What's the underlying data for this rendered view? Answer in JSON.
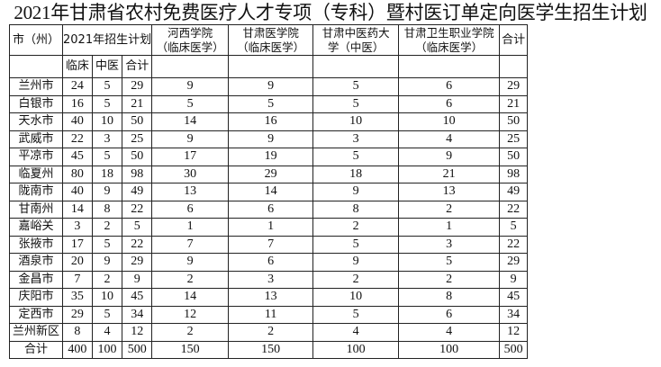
{
  "title": "2021年甘肃省农村免费医疗人才专项（专科）暨村医订单定向医学生招生计划",
  "headers": {
    "region": "市（州）",
    "plan": "2021年招生计划",
    "plan_sub": [
      "临床",
      "中医",
      "合计"
    ],
    "schools": [
      [
        "河西学院",
        "（临床医学）"
      ],
      [
        "甘肃医学院",
        "（临床医学）"
      ],
      [
        "甘肃中医药大",
        "学（中医）"
      ],
      [
        "甘肃卫生职业学院",
        "（临床医学）"
      ]
    ],
    "total": "合计"
  },
  "rows": [
    [
      "兰州市",
      "24",
      "5",
      "29",
      "9",
      "9",
      "5",
      "6",
      "29"
    ],
    [
      "白银市",
      "16",
      "5",
      "21",
      "5",
      "5",
      "5",
      "6",
      "21"
    ],
    [
      "天水市",
      "40",
      "10",
      "50",
      "14",
      "16",
      "10",
      "10",
      "50"
    ],
    [
      "武威市",
      "22",
      "3",
      "25",
      "9",
      "9",
      "3",
      "4",
      "25"
    ],
    [
      "平凉市",
      "45",
      "5",
      "50",
      "17",
      "19",
      "5",
      "9",
      "50"
    ],
    [
      "临夏州",
      "80",
      "18",
      "98",
      "30",
      "29",
      "18",
      "21",
      "98"
    ],
    [
      "陇南市",
      "40",
      "9",
      "49",
      "13",
      "14",
      "9",
      "13",
      "49"
    ],
    [
      "甘南州",
      "14",
      "8",
      "22",
      "6",
      "6",
      "8",
      "2",
      "22"
    ],
    [
      "嘉峪关",
      "3",
      "2",
      "5",
      "1",
      "1",
      "2",
      "1",
      "5"
    ],
    [
      "张掖市",
      "17",
      "5",
      "22",
      "7",
      "7",
      "5",
      "3",
      "22"
    ],
    [
      "酒泉市",
      "20",
      "9",
      "29",
      "9",
      "6",
      "9",
      "5",
      "29"
    ],
    [
      "金昌市",
      "7",
      "2",
      "9",
      "2",
      "3",
      "2",
      "2",
      "9"
    ],
    [
      "庆阳市",
      "35",
      "10",
      "45",
      "14",
      "13",
      "10",
      "8",
      "45"
    ],
    [
      "定西市",
      "29",
      "5",
      "34",
      "12",
      "11",
      "5",
      "6",
      "34"
    ],
    [
      "兰州新区",
      "8",
      "4",
      "12",
      "2",
      "2",
      "4",
      "4",
      "12"
    ],
    [
      "合计",
      "400",
      "100",
      "500",
      "150",
      "150",
      "100",
      "100",
      "500"
    ]
  ]
}
